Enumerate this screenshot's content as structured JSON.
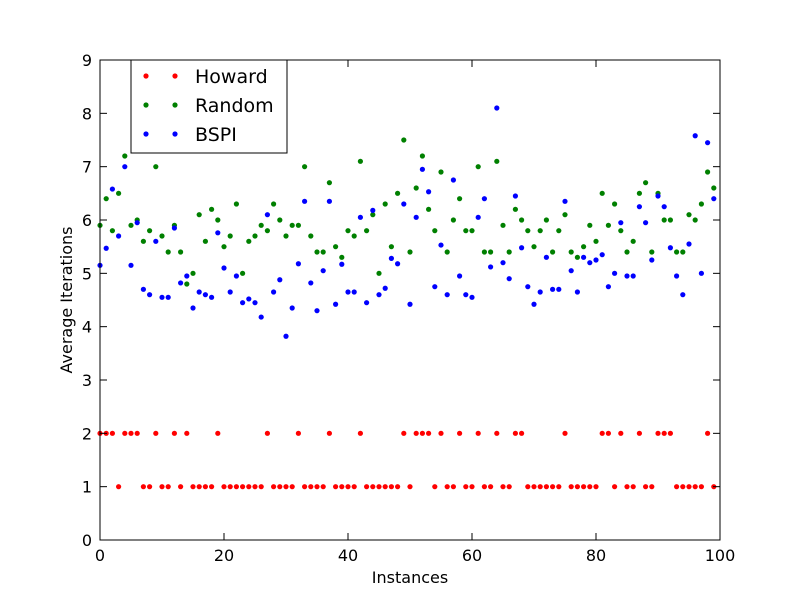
{
  "chart_data": {
    "type": "scatter",
    "title": "",
    "xlabel": "Instances",
    "ylabel": "Average Iterations",
    "xlim": [
      0,
      100
    ],
    "ylim": [
      0,
      9
    ],
    "xticks": [
      "0",
      "20",
      "40",
      "60",
      "80",
      "100"
    ],
    "yticks": [
      "0",
      "1",
      "2",
      "3",
      "4",
      "5",
      "6",
      "7",
      "8",
      "9"
    ],
    "grid": false,
    "legend_position": "top-left",
    "series": [
      {
        "name": "Howard",
        "color": "#ff0000",
        "x": [
          0,
          1,
          2,
          3,
          4,
          5,
          6,
          7,
          8,
          9,
          10,
          11,
          12,
          13,
          14,
          15,
          16,
          17,
          18,
          19,
          20,
          21,
          22,
          23,
          24,
          25,
          26,
          27,
          28,
          29,
          30,
          31,
          32,
          33,
          34,
          35,
          36,
          37,
          38,
          39,
          40,
          41,
          42,
          43,
          44,
          45,
          46,
          47,
          48,
          49,
          50,
          51,
          52,
          53,
          54,
          55,
          56,
          57,
          58,
          59,
          60,
          61,
          62,
          63,
          64,
          65,
          66,
          67,
          68,
          69,
          70,
          71,
          72,
          73,
          74,
          75,
          76,
          77,
          78,
          79,
          80,
          81,
          82,
          83,
          84,
          85,
          86,
          87,
          88,
          89,
          90,
          91,
          92,
          93,
          94,
          95,
          96,
          97,
          98,
          99
        ],
        "y": [
          2,
          2,
          2,
          1,
          2,
          2,
          2,
          1,
          1,
          2,
          1,
          1,
          2,
          1,
          2,
          1,
          1,
          1,
          1,
          2,
          1,
          1,
          1,
          1,
          1,
          1,
          1,
          2,
          1,
          1,
          1,
          1,
          2,
          1,
          1,
          1,
          1,
          2,
          1,
          1,
          1,
          1,
          2,
          1,
          1,
          1,
          1,
          1,
          1,
          2,
          1,
          2,
          2,
          2,
          1,
          2,
          1,
          1,
          2,
          1,
          1,
          2,
          1,
          1,
          2,
          1,
          1,
          2,
          2,
          1,
          1,
          1,
          1,
          1,
          1,
          2,
          1,
          1,
          1,
          1,
          1,
          2,
          2,
          1,
          2,
          1,
          1,
          2,
          1,
          1,
          2,
          2,
          2,
          1,
          1,
          1,
          1,
          1,
          2,
          1
        ]
      },
      {
        "name": "Random",
        "color": "#008000",
        "x": [
          0,
          1,
          2,
          3,
          4,
          5,
          6,
          7,
          8,
          9,
          10,
          11,
          12,
          13,
          14,
          15,
          16,
          17,
          18,
          19,
          20,
          21,
          22,
          23,
          24,
          25,
          26,
          27,
          28,
          29,
          30,
          31,
          32,
          33,
          34,
          35,
          36,
          37,
          38,
          39,
          40,
          41,
          42,
          43,
          44,
          45,
          46,
          47,
          48,
          49,
          50,
          51,
          52,
          53,
          54,
          55,
          56,
          57,
          58,
          59,
          60,
          61,
          62,
          63,
          64,
          65,
          66,
          67,
          68,
          69,
          70,
          71,
          72,
          73,
          74,
          75,
          76,
          77,
          78,
          79,
          80,
          81,
          82,
          83,
          84,
          85,
          86,
          87,
          88,
          89,
          90,
          91,
          92,
          93,
          94,
          95,
          96,
          97,
          98,
          99
        ],
        "y": [
          5.9,
          6.4,
          5.8,
          6.5,
          7.2,
          5.9,
          6.0,
          5.6,
          5.8,
          7.0,
          5.7,
          5.4,
          5.9,
          5.4,
          4.8,
          5.0,
          6.1,
          5.6,
          6.2,
          6.0,
          5.5,
          5.7,
          6.3,
          5.0,
          5.6,
          5.7,
          5.9,
          5.8,
          6.3,
          6.0,
          5.7,
          5.9,
          5.9,
          7.0,
          5.7,
          5.4,
          5.4,
          6.7,
          5.5,
          5.3,
          5.8,
          5.7,
          7.1,
          5.8,
          6.1,
          5.0,
          6.3,
          5.5,
          6.5,
          7.5,
          5.4,
          6.6,
          7.2,
          6.2,
          5.8,
          6.9,
          5.4,
          6.0,
          6.4,
          5.8,
          5.8,
          7.0,
          5.4,
          5.4,
          7.1,
          5.9,
          5.4,
          6.2,
          6.0,
          5.8,
          5.5,
          5.8,
          6.0,
          5.4,
          5.8,
          6.1,
          5.4,
          5.3,
          5.5,
          5.9,
          5.6,
          6.5,
          5.9,
          6.3,
          5.8,
          5.4,
          5.6,
          6.5,
          6.7,
          5.4,
          6.5,
          6.0,
          6.0,
          5.4,
          5.4,
          6.1,
          6.0,
          6.3,
          6.9,
          6.6
        ]
      },
      {
        "name": "BSPI",
        "color": "#0000ff",
        "x": [
          0,
          1,
          2,
          3,
          4,
          5,
          6,
          7,
          8,
          9,
          10,
          11,
          12,
          13,
          14,
          15,
          16,
          17,
          18,
          19,
          20,
          21,
          22,
          23,
          24,
          25,
          26,
          27,
          28,
          29,
          30,
          31,
          32,
          33,
          34,
          35,
          36,
          37,
          38,
          39,
          40,
          41,
          42,
          43,
          44,
          45,
          46,
          47,
          48,
          49,
          50,
          51,
          52,
          53,
          54,
          55,
          56,
          57,
          58,
          59,
          60,
          61,
          62,
          63,
          64,
          65,
          66,
          67,
          68,
          69,
          70,
          71,
          72,
          73,
          74,
          75,
          76,
          77,
          78,
          79,
          80,
          81,
          82,
          83,
          84,
          85,
          86,
          87,
          88,
          89,
          90,
          91,
          92,
          93,
          94,
          95,
          96,
          97,
          98,
          99
        ],
        "y": [
          5.15,
          5.47,
          6.58,
          5.7,
          7.0,
          5.15,
          5.95,
          4.7,
          4.6,
          5.6,
          4.55,
          4.55,
          5.85,
          4.82,
          4.95,
          4.35,
          4.65,
          4.6,
          4.55,
          5.76,
          5.1,
          4.65,
          4.95,
          4.45,
          4.52,
          4.45,
          4.18,
          6.1,
          4.65,
          4.88,
          3.82,
          4.35,
          5.18,
          6.35,
          4.82,
          4.3,
          5.05,
          6.35,
          4.42,
          5.17,
          4.65,
          4.65,
          6.05,
          4.45,
          6.18,
          4.6,
          4.72,
          5.28,
          5.18,
          6.3,
          4.42,
          6.05,
          6.95,
          6.53,
          4.75,
          5.53,
          4.6,
          6.75,
          4.95,
          4.6,
          4.55,
          6.05,
          6.4,
          5.12,
          8.1,
          5.2,
          4.9,
          6.45,
          5.48,
          4.75,
          4.42,
          4.65,
          5.3,
          4.7,
          4.7,
          6.35,
          5.05,
          4.65,
          5.3,
          5.2,
          5.25,
          5.35,
          4.75,
          5.0,
          5.95,
          4.95,
          4.95,
          6.25,
          5.95,
          5.25,
          6.45,
          6.25,
          5.48,
          4.95,
          4.6,
          5.55,
          7.58,
          5.0,
          7.45,
          6.4
        ]
      }
    ]
  }
}
